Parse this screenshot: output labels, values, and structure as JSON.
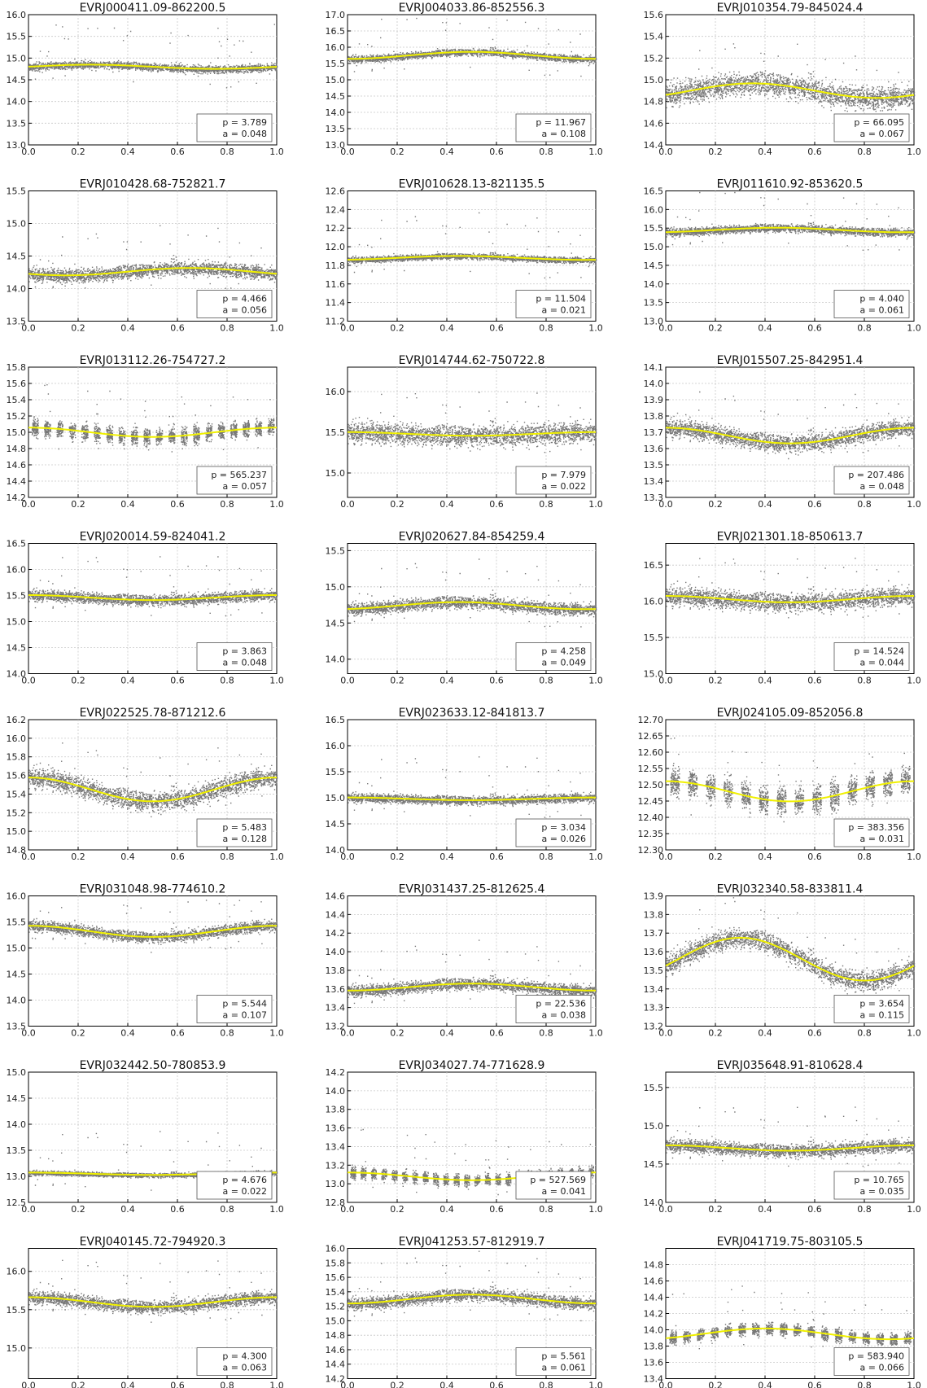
{
  "chart_data": [
    {
      "type": "scatter",
      "title": "EVRJ000411.09-862200.5",
      "ylim": [
        13.0,
        16.0
      ],
      "yticks": [
        "13.0",
        "13.5",
        "14.0",
        "14.5",
        "15.0",
        "15.5",
        "16.0"
      ],
      "xticks": [
        "0.0",
        "0.2",
        "0.4",
        "0.6",
        "0.8",
        "1.0"
      ],
      "base": 14.8,
      "amp": 0.048,
      "phase": 0.25,
      "scatter": 0.08,
      "clump": 0,
      "legend": {
        "p": "p = 3.789",
        "a": "a = 0.048"
      }
    },
    {
      "type": "scatter",
      "title": "EVRJ004033.86-852556.3",
      "ylim": [
        13.0,
        17.0
      ],
      "yticks": [
        "13.0",
        "13.5",
        "14.0",
        "14.5",
        "15.0",
        "15.5",
        "16.0",
        "16.5",
        "17.0"
      ],
      "xticks": [
        "0.0",
        "0.2",
        "0.4",
        "0.6",
        "0.8",
        "1.0"
      ],
      "base": 15.75,
      "amp": 0.108,
      "phase": 0.5,
      "scatter": 0.1,
      "clump": 0,
      "legend": {
        "p": "p = 11.967",
        "a": "a = 0.108"
      }
    },
    {
      "type": "scatter",
      "title": "EVRJ010354.79-845024.4",
      "ylim": [
        14.4,
        15.6
      ],
      "yticks": [
        "14.4",
        "14.6",
        "14.8",
        "15.0",
        "15.2",
        "15.4",
        "15.6"
      ],
      "xticks": [
        "0.0",
        "0.2",
        "0.4",
        "0.6",
        "0.8",
        "1.0"
      ],
      "base": 14.9,
      "amp": 0.067,
      "phase": 0.35,
      "scatter": 0.1,
      "clump": 0,
      "legend": {
        "p": "p = 66.095",
        "a": "a = 0.067"
      }
    },
    {
      "type": "scatter",
      "title": "EVRJ010428.68-752821.7",
      "ylim": [
        13.5,
        15.5
      ],
      "yticks": [
        "13.5",
        "14.0",
        "14.5",
        "15.0",
        "15.5"
      ],
      "xticks": [
        "0.0",
        "0.2",
        "0.4",
        "0.6",
        "0.8",
        "1.0"
      ],
      "base": 14.26,
      "amp": 0.056,
      "phase": 0.65,
      "scatter": 0.1,
      "clump": 0,
      "legend": {
        "p": "p = 4.466",
        "a": "a = 0.056"
      }
    },
    {
      "type": "scatter",
      "title": "EVRJ010628.13-821135.5",
      "ylim": [
        11.2,
        12.6
      ],
      "yticks": [
        "11.2",
        "11.4",
        "11.6",
        "11.8",
        "12.0",
        "12.2",
        "12.4",
        "12.6"
      ],
      "xticks": [
        "0.0",
        "0.2",
        "0.4",
        "0.6",
        "0.8",
        "1.0"
      ],
      "base": 11.88,
      "amp": 0.021,
      "phase": 0.45,
      "scatter": 0.03,
      "clump": 0,
      "legend": {
        "p": "p = 11.504",
        "a": "a = 0.021"
      }
    },
    {
      "type": "scatter",
      "title": "EVRJ011610.92-853620.5",
      "ylim": [
        13.0,
        16.5
      ],
      "yticks": [
        "13.0",
        "13.5",
        "14.0",
        "14.5",
        "15.0",
        "15.5",
        "16.0",
        "16.5"
      ],
      "xticks": [
        "0.0",
        "0.2",
        "0.4",
        "0.6",
        "0.8",
        "1.0"
      ],
      "base": 15.45,
      "amp": 0.061,
      "phase": 0.45,
      "scatter": 0.1,
      "clump": 0,
      "legend": {
        "p": "p = 4.040",
        "a": "a = 0.061"
      }
    },
    {
      "type": "scatter",
      "title": "EVRJ013112.26-754727.2",
      "ylim": [
        14.2,
        15.8
      ],
      "yticks": [
        "14.2",
        "14.4",
        "14.6",
        "14.8",
        "15.0",
        "15.2",
        "15.4",
        "15.6",
        "15.8"
      ],
      "xticks": [
        "0.0",
        "0.2",
        "0.4",
        "0.6",
        "0.8",
        "1.0"
      ],
      "base": 15.0,
      "amp": 0.057,
      "phase": -0.0,
      "scatter": 0.1,
      "clump": 20,
      "legend": {
        "p": "p = 565.237",
        "a": "a = 0.057"
      }
    },
    {
      "type": "scatter",
      "title": "EVRJ014744.62-750722.8",
      "ylim": [
        14.7,
        16.3
      ],
      "yticks": [
        "15.0",
        "15.5",
        "16.0"
      ],
      "xticks": [
        "0.0",
        "0.2",
        "0.4",
        "0.6",
        "0.8",
        "1.0"
      ],
      "base": 15.48,
      "amp": 0.022,
      "phase": 0.0,
      "scatter": 0.12,
      "clump": 0,
      "legend": {
        "p": "p = 7.979",
        "a": "a = 0.022"
      }
    },
    {
      "type": "scatter",
      "title": "EVRJ015507.25-842951.4",
      "ylim": [
        13.3,
        14.1
      ],
      "yticks": [
        "13.3",
        "13.4",
        "13.5",
        "13.6",
        "13.7",
        "13.8",
        "13.9",
        "14.0",
        "14.1"
      ],
      "xticks": [
        "0.0",
        "0.2",
        "0.4",
        "0.6",
        "0.8",
        "1.0"
      ],
      "base": 13.68,
      "amp": 0.048,
      "phase": 0.0,
      "scatter": 0.05,
      "clump": 0,
      "legend": {
        "p": "p = 207.486",
        "a": "a = 0.048"
      }
    },
    {
      "type": "scatter",
      "title": "EVRJ020014.59-824041.2",
      "ylim": [
        14.0,
        16.5
      ],
      "yticks": [
        "14.0",
        "14.5",
        "15.0",
        "15.5",
        "16.0",
        "16.5"
      ],
      "xticks": [
        "0.0",
        "0.2",
        "0.4",
        "0.6",
        "0.8",
        "1.0"
      ],
      "base": 15.46,
      "amp": 0.048,
      "phase": 0.0,
      "scatter": 0.1,
      "clump": 0,
      "legend": {
        "p": "p = 3.863",
        "a": "a = 0.048"
      }
    },
    {
      "type": "scatter",
      "title": "EVRJ020627.84-854259.4",
      "ylim": [
        13.8,
        15.6
      ],
      "yticks": [
        "14.0",
        "14.5",
        "15.0",
        "15.5"
      ],
      "xticks": [
        "0.0",
        "0.2",
        "0.4",
        "0.6",
        "0.8",
        "1.0"
      ],
      "base": 14.74,
      "amp": 0.049,
      "phase": 0.45,
      "scatter": 0.08,
      "clump": 0,
      "legend": {
        "p": "p = 4.258",
        "a": "a = 0.049"
      }
    },
    {
      "type": "scatter",
      "title": "EVRJ021301.18-850613.7",
      "ylim": [
        15.0,
        16.8
      ],
      "yticks": [
        "15.0",
        "15.5",
        "16.0",
        "16.5"
      ],
      "xticks": [
        "0.0",
        "0.2",
        "0.4",
        "0.6",
        "0.8",
        "1.0"
      ],
      "base": 16.03,
      "amp": 0.044,
      "phase": 0.0,
      "scatter": 0.12,
      "clump": 0,
      "legend": {
        "p": "p = 14.524",
        "a": "a = 0.044"
      }
    },
    {
      "type": "scatter",
      "title": "EVRJ022525.78-871212.6",
      "ylim": [
        14.8,
        16.2
      ],
      "yticks": [
        "14.8",
        "15.0",
        "15.2",
        "15.4",
        "15.6",
        "15.8",
        "16.0",
        "16.2"
      ],
      "xticks": [
        "0.0",
        "0.2",
        "0.4",
        "0.6",
        "0.8",
        "1.0"
      ],
      "base": 15.45,
      "amp": 0.128,
      "phase": 0.0,
      "scatter": 0.1,
      "clump": 0,
      "legend": {
        "p": "p = 5.483",
        "a": "a = 0.128"
      }
    },
    {
      "type": "scatter",
      "title": "EVRJ023633.12-841813.7",
      "ylim": [
        14.0,
        16.5
      ],
      "yticks": [
        "14.0",
        "14.5",
        "15.0",
        "15.5",
        "16.0",
        "16.5"
      ],
      "xticks": [
        "0.0",
        "0.2",
        "0.4",
        "0.6",
        "0.8",
        "1.0"
      ],
      "base": 14.98,
      "amp": 0.026,
      "phase": 0.0,
      "scatter": 0.08,
      "clump": 0,
      "legend": {
        "p": "p = 3.034",
        "a": "a = 0.026"
      }
    },
    {
      "type": "scatter",
      "title": "EVRJ024105.09-852056.8",
      "ylim": [
        12.3,
        12.7
      ],
      "yticks": [
        "12.30",
        "12.35",
        "12.40",
        "12.45",
        "12.50",
        "12.55",
        "12.60",
        "12.65",
        "12.70"
      ],
      "xticks": [
        "0.0",
        "0.2",
        "0.4",
        "0.6",
        "0.8",
        "1.0"
      ],
      "base": 12.48,
      "amp": 0.031,
      "phase": 0.0,
      "scatter": 0.04,
      "clump": 14,
      "legend": {
        "p": "p = 383.356",
        "a": "a = 0.031"
      }
    },
    {
      "type": "scatter",
      "title": "EVRJ031048.98-774610.2",
      "ylim": [
        13.5,
        16.0
      ],
      "yticks": [
        "13.5",
        "14.0",
        "14.5",
        "15.0",
        "15.5",
        "16.0"
      ],
      "xticks": [
        "0.0",
        "0.2",
        "0.4",
        "0.6",
        "0.8",
        "1.0"
      ],
      "base": 15.32,
      "amp": 0.107,
      "phase": 0.0,
      "scatter": 0.1,
      "clump": 0,
      "legend": {
        "p": "p = 5.544",
        "a": "a = 0.107"
      }
    },
    {
      "type": "scatter",
      "title": "EVRJ031437.25-812625.4",
      "ylim": [
        13.2,
        14.6
      ],
      "yticks": [
        "13.2",
        "13.4",
        "13.6",
        "13.8",
        "14.0",
        "14.2",
        "14.4",
        "14.6"
      ],
      "xticks": [
        "0.0",
        "0.2",
        "0.4",
        "0.6",
        "0.8",
        "1.0"
      ],
      "base": 13.62,
      "amp": 0.038,
      "phase": 0.5,
      "scatter": 0.06,
      "clump": 0,
      "legend": {
        "p": "p = 22.536",
        "a": "a = 0.038"
      }
    },
    {
      "type": "scatter",
      "title": "EVRJ032340.58-833811.4",
      "ylim": [
        13.2,
        13.9
      ],
      "yticks": [
        "13.2",
        "13.3",
        "13.4",
        "13.5",
        "13.6",
        "13.7",
        "13.8",
        "13.9"
      ],
      "xticks": [
        "0.0",
        "0.2",
        "0.4",
        "0.6",
        "0.8",
        "1.0"
      ],
      "base": 13.56,
      "amp": 0.115,
      "phase": 0.3,
      "scatter": 0.05,
      "clump": 0,
      "legend": {
        "p": "p = 3.654",
        "a": "a = 0.115"
      }
    },
    {
      "type": "scatter",
      "title": "EVRJ032442.50-780853.9",
      "ylim": [
        12.5,
        15.0
      ],
      "yticks": [
        "12.5",
        "13.0",
        "13.5",
        "14.0",
        "14.5",
        "15.0"
      ],
      "xticks": [
        "0.0",
        "0.2",
        "0.4",
        "0.6",
        "0.8",
        "1.0"
      ],
      "base": 13.05,
      "amp": 0.022,
      "phase": 0.0,
      "scatter": 0.04,
      "clump": 0,
      "legend": {
        "p": "p = 4.676",
        "a": "a = 0.022"
      }
    },
    {
      "type": "scatter",
      "title": "EVRJ034027.74-771628.9",
      "ylim": [
        12.8,
        14.2
      ],
      "yticks": [
        "12.8",
        "13.0",
        "13.2",
        "13.4",
        "13.6",
        "13.8",
        "14.0",
        "14.2"
      ],
      "xticks": [
        "0.0",
        "0.2",
        "0.4",
        "0.6",
        "0.8",
        "1.0"
      ],
      "base": 13.08,
      "amp": 0.041,
      "phase": 0.0,
      "scatter": 0.06,
      "clump": 24,
      "legend": {
        "p": "p = 527.569",
        "a": "a = 0.041"
      }
    },
    {
      "type": "scatter",
      "title": "EVRJ035648.91-810628.4",
      "ylim": [
        14.0,
        15.7
      ],
      "yticks": [
        "14.0",
        "14.5",
        "15.0",
        "15.5"
      ],
      "xticks": [
        "0.0",
        "0.2",
        "0.4",
        "0.6",
        "0.8",
        "1.0"
      ],
      "base": 14.71,
      "amp": 0.035,
      "phase": 0.0,
      "scatter": 0.08,
      "clump": 0,
      "legend": {
        "p": "p = 10.765",
        "a": "a = 0.035"
      }
    },
    {
      "type": "scatter",
      "title": "EVRJ040145.72-794920.3",
      "ylim": [
        14.6,
        16.3
      ],
      "yticks": [
        "15.0",
        "15.5",
        "16.0"
      ],
      "xticks": [
        "0.0",
        "0.2",
        "0.4",
        "0.6",
        "0.8",
        "1.0"
      ],
      "base": 15.6,
      "amp": 0.063,
      "phase": 0.0,
      "scatter": 0.08,
      "clump": 0,
      "legend": {
        "p": "p = 4.300",
        "a": "a = 0.063"
      }
    },
    {
      "type": "scatter",
      "title": "EVRJ041253.57-812919.7",
      "ylim": [
        14.2,
        16.0
      ],
      "yticks": [
        "14.2",
        "14.4",
        "14.6",
        "14.8",
        "15.0",
        "15.2",
        "15.4",
        "15.6",
        "15.8",
        "16.0"
      ],
      "xticks": [
        "0.0",
        "0.2",
        "0.4",
        "0.6",
        "0.8",
        "1.0"
      ],
      "base": 15.3,
      "amp": 0.061,
      "phase": 0.5,
      "scatter": 0.08,
      "clump": 0,
      "legend": {
        "p": "p = 5.561",
        "a": "a = 0.061"
      }
    },
    {
      "type": "scatter",
      "title": "EVRJ041719.75-803105.5",
      "ylim": [
        13.4,
        15.0
      ],
      "yticks": [
        "13.4",
        "13.6",
        "13.8",
        "14.0",
        "14.2",
        "14.4",
        "14.6",
        "14.8"
      ],
      "xticks": [
        "0.0",
        "0.2",
        "0.4",
        "0.6",
        "0.8",
        "1.0"
      ],
      "base": 13.95,
      "amp": 0.066,
      "phase": 0.4,
      "scatter": 0.07,
      "clump": 18,
      "legend": {
        "p": "p = 583.940",
        "a": "a = 0.066"
      }
    }
  ]
}
